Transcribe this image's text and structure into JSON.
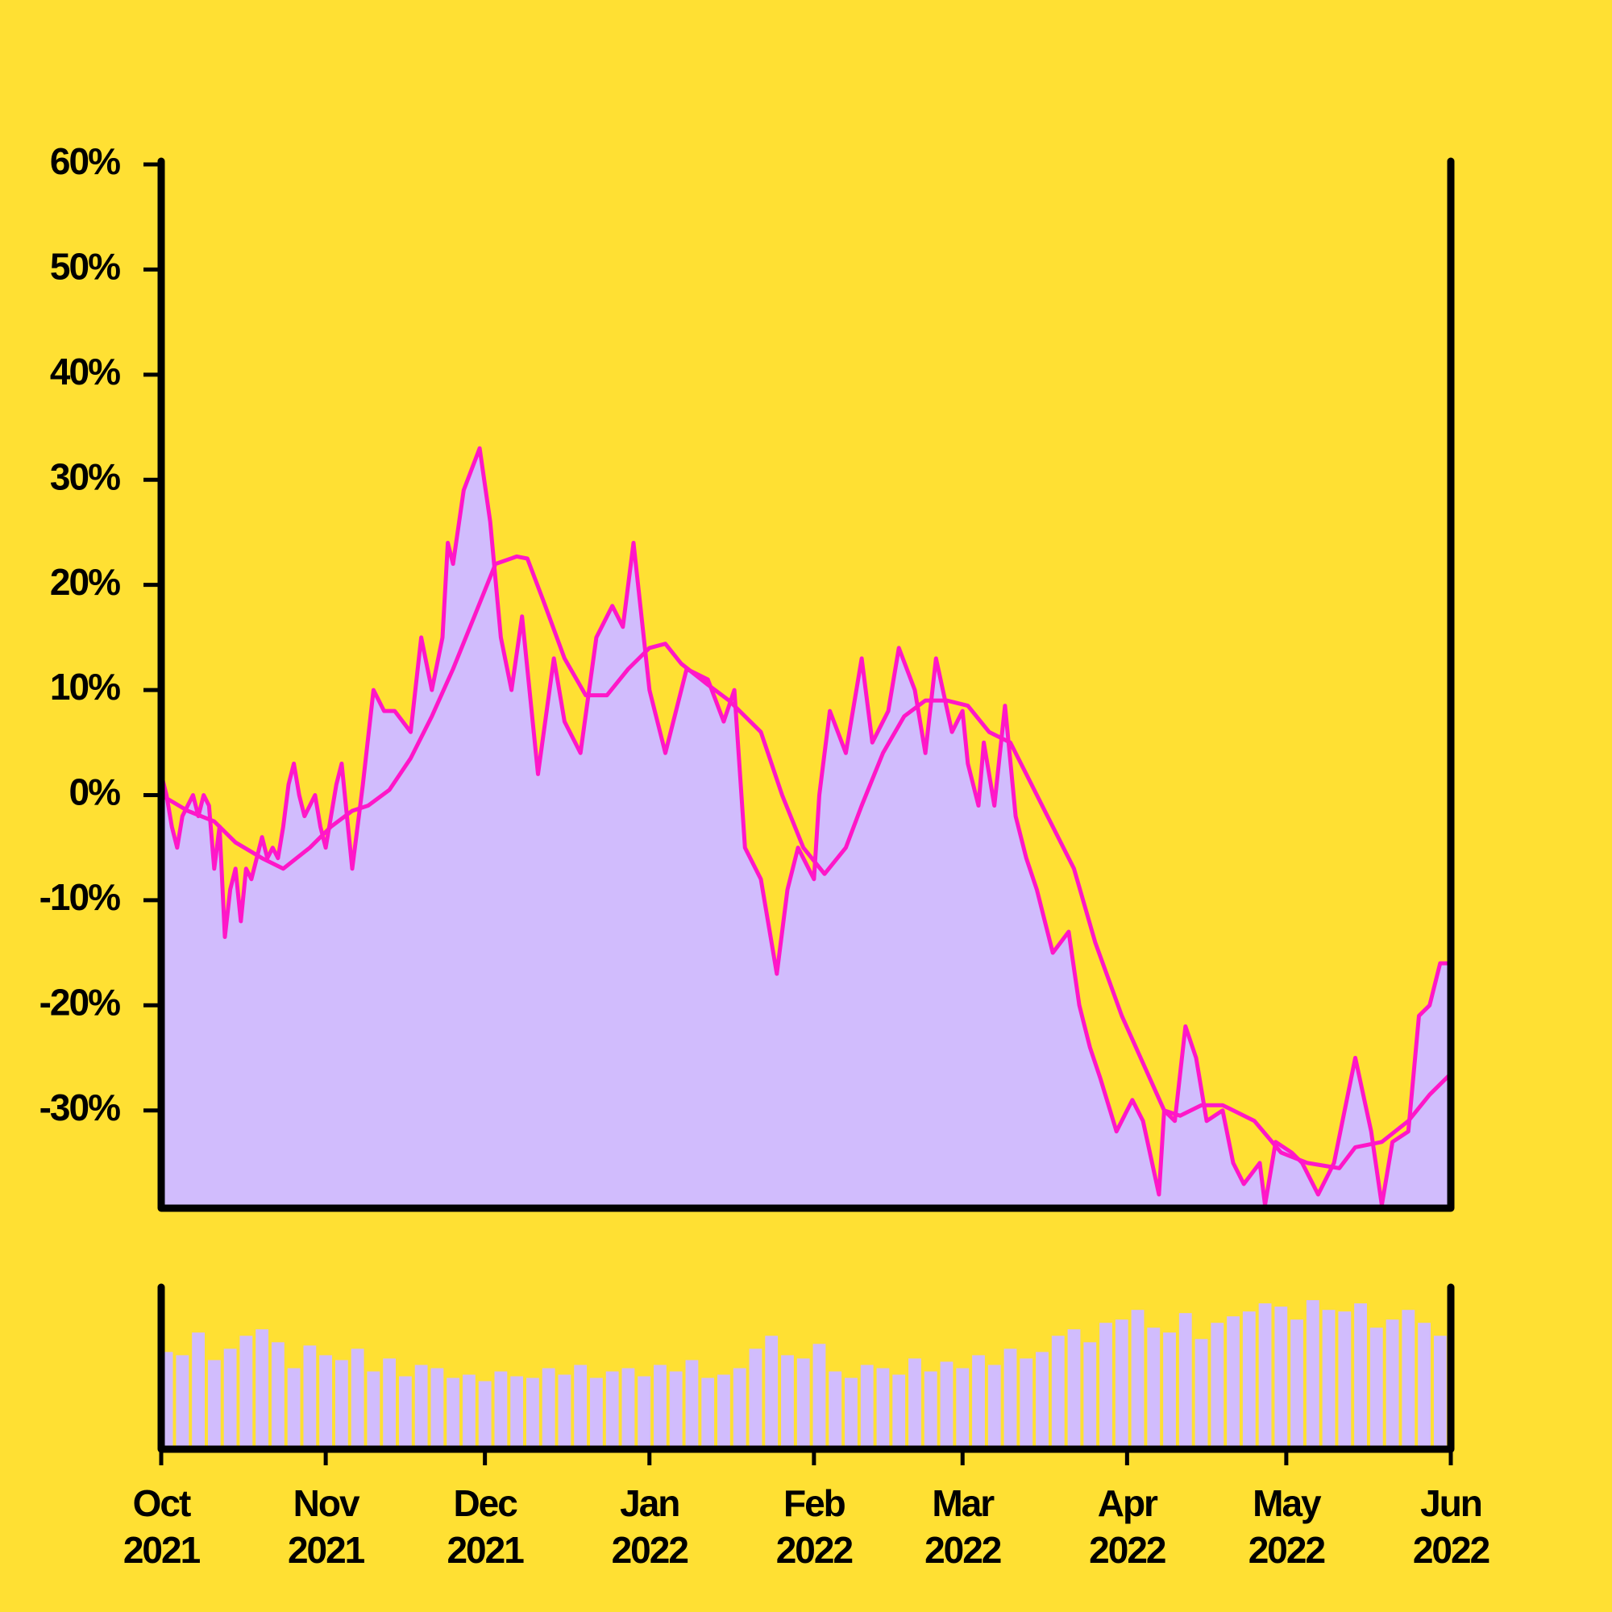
{
  "chart_data": [
    {
      "type": "area",
      "xlim": [
        0,
        243
      ],
      "ylim": [
        -39.3,
        60
      ],
      "yticks": [
        {
          "value": 60,
          "label": "60%"
        },
        {
          "value": 50,
          "label": "50%"
        },
        {
          "value": 40,
          "label": "40%"
        },
        {
          "value": 30,
          "label": "30%"
        },
        {
          "value": 20,
          "label": "20%"
        },
        {
          "value": 10,
          "label": "10%"
        },
        {
          "value": 0,
          "label": "0%"
        },
        {
          "value": -10,
          "label": "-10%"
        },
        {
          "value": -20,
          "label": "-20%"
        },
        {
          "value": -30,
          "label": "-30%"
        }
      ],
      "grid": false,
      "series": [
        {
          "color": "#ff17c8",
          "fill": "#d1bcfd",
          "x": [
            0,
            1,
            2,
            3,
            4,
            5,
            6,
            7,
            8,
            9,
            10,
            11,
            12,
            13,
            14,
            15,
            16,
            17,
            18,
            19,
            20,
            21,
            22,
            23,
            24,
            25,
            26,
            27,
            28,
            29,
            30,
            31,
            32,
            33,
            34,
            36,
            38,
            40,
            42,
            44,
            47,
            49,
            51,
            53,
            54,
            55,
            57,
            60,
            62,
            64,
            66,
            68,
            71,
            74,
            76,
            79,
            82,
            85,
            87,
            89,
            92,
            95,
            99,
            103,
            106,
            108,
            110,
            113,
            116,
            118,
            120,
            123,
            124,
            126,
            129,
            132,
            134,
            137,
            139,
            142,
            144,
            146,
            149,
            151,
            152,
            154,
            155,
            157,
            159,
            161,
            163,
            165,
            168,
            171,
            173,
            175,
            177,
            180,
            183,
            185,
            188,
            189,
            191,
            193,
            195,
            197,
            200,
            202,
            204,
            207,
            208,
            210,
            213,
            215,
            218,
            221,
            223,
            225,
            228,
            230,
            232,
            235,
            237,
            239,
            241,
            243
          ],
          "values": [
            2,
            0,
            -3,
            -5,
            -2,
            -1,
            0,
            -2,
            0,
            -1,
            -7,
            -3,
            -13.5,
            -9,
            -7,
            -12,
            -7,
            -8,
            -6,
            -4,
            -6,
            -5,
            -6,
            -3,
            1,
            3,
            0,
            -2,
            -1,
            0,
            -3,
            -5,
            -2,
            1,
            3,
            -7,
            1,
            10,
            8,
            8,
            6,
            15,
            10,
            15,
            24,
            22,
            29,
            33,
            26,
            15,
            10,
            17,
            2,
            13,
            7,
            4,
            15,
            18,
            16,
            24,
            10,
            4,
            12,
            11,
            7,
            10,
            -5,
            -8,
            -17,
            -9,
            -5,
            -8,
            0,
            8,
            4,
            13,
            5,
            8,
            14,
            10,
            4,
            13,
            6,
            8,
            3,
            -1,
            5,
            -1,
            8.5,
            -2,
            -6,
            -9,
            -15,
            -13,
            -20,
            -24,
            -27,
            -32,
            -29,
            -31,
            -38,
            -30,
            -31,
            -22,
            -25,
            -31,
            -30,
            -35,
            -37,
            -35,
            -39,
            -33,
            -34,
            -35,
            -38,
            -35,
            -30,
            -25,
            -32,
            -39,
            -33,
            -32,
            -21,
            -20,
            -16,
            -16
          ]
        },
        {
          "color": "#ff17c8",
          "x": [
            0,
            5,
            10,
            14,
            19,
            23,
            28,
            32,
            36,
            39,
            43,
            47,
            51,
            55,
            59,
            63,
            67,
            69,
            72,
            76,
            80,
            84,
            88,
            92,
            95,
            98,
            103,
            107,
            113,
            117,
            121,
            125,
            129,
            132,
            136,
            140,
            144,
            148,
            152,
            156,
            160,
            163,
            167,
            172,
            176,
            181,
            185,
            189,
            192,
            196,
            200,
            206,
            211,
            216,
            222,
            225,
            230,
            235,
            239,
            243
          ],
          "values": [
            0,
            -1.5,
            -2.5,
            -4.5,
            -6,
            -7,
            -5,
            -3,
            -1.5,
            -1,
            0.5,
            3.5,
            7.5,
            12,
            17,
            22,
            22.7,
            22.5,
            18.5,
            13,
            9.5,
            9.5,
            12,
            14,
            14.4,
            12.5,
            10.5,
            9,
            6,
            0,
            -5,
            -7.5,
            -5,
            -1,
            4,
            7.5,
            9,
            9,
            8.5,
            6,
            5,
            2,
            -2,
            -7,
            -14,
            -21,
            -25.5,
            -30,
            -30.5,
            -29.5,
            -29.5,
            -31,
            -34,
            -35,
            -35.5,
            -33.5,
            -33,
            -31,
            -28.5,
            -26.5
          ]
        }
      ]
    },
    {
      "type": "bar",
      "color": "#d1bcfd",
      "xlim": [
        0,
        243
      ],
      "ylim": [
        0,
        100
      ],
      "xticks": [
        {
          "value": 0,
          "label": "Oct\n2021"
        },
        {
          "value": 31,
          "label": "Nov\n2021"
        },
        {
          "value": 61,
          "label": "Dec\n2021"
        },
        {
          "value": 92,
          "label": "Jan\n2022"
        },
        {
          "value": 123,
          "label": "Feb\n2022"
        },
        {
          "value": 151,
          "label": "Mar\n2022"
        },
        {
          "value": 182,
          "label": "Apr\n2022"
        },
        {
          "value": 212,
          "label": "May\n2022"
        },
        {
          "value": 243,
          "label": "Jun\n2022"
        }
      ],
      "x": [
        1,
        4,
        7,
        10,
        13,
        16,
        19,
        22,
        25,
        28,
        31,
        34,
        37,
        40,
        43,
        46,
        49,
        52,
        55,
        58,
        61,
        64,
        67,
        70,
        73,
        76,
        79,
        82,
        85,
        88,
        91,
        94,
        97,
        100,
        103,
        106,
        109,
        112,
        115,
        118,
        121,
        124,
        127,
        130,
        133,
        136,
        139,
        142,
        145,
        148,
        151,
        154,
        157,
        160,
        163,
        166,
        169,
        172,
        175,
        178,
        181,
        184,
        187,
        190,
        193,
        196,
        199,
        202,
        205,
        208,
        211,
        214,
        217,
        220,
        223,
        226,
        229,
        232,
        235,
        238,
        241
      ],
      "values": [
        60,
        58,
        72,
        55,
        62,
        70,
        74,
        66,
        50,
        64,
        58,
        55,
        62,
        48,
        56,
        45,
        52,
        50,
        44,
        46,
        42,
        48,
        45,
        44,
        50,
        46,
        52,
        44,
        48,
        50,
        45,
        52,
        48,
        55,
        44,
        46,
        50,
        62,
        70,
        58,
        56,
        65,
        48,
        44,
        52,
        50,
        46,
        56,
        48,
        54,
        50,
        58,
        52,
        62,
        56,
        60,
        70,
        74,
        66,
        78,
        80,
        86,
        75,
        72,
        84,
        68,
        78,
        82,
        85,
        90,
        88,
        80,
        92,
        86,
        85,
        90,
        75,
        80,
        86,
        78,
        70
      ]
    }
  ]
}
